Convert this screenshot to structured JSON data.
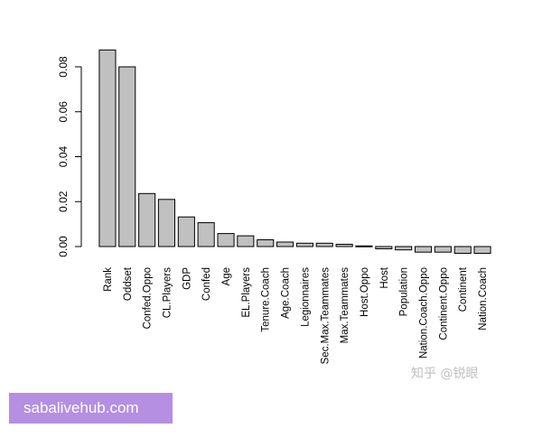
{
  "chart_data": {
    "type": "bar",
    "title": "",
    "xlabel": "",
    "ylabel": "",
    "ylim": [
      -0.004,
      0.088
    ],
    "yticks": [
      "0.00",
      "0.02",
      "0.04",
      "0.06",
      "0.08"
    ],
    "grid": false,
    "bar_fill": "#c0c0c0",
    "bar_stroke": "#000000",
    "categories": [
      "Rank",
      "Oddset",
      "Confed.Oppo",
      "CL.Players",
      "GDP",
      "Confed",
      "Age",
      "EL.Players",
      "Tenure.Coach",
      "Age.Coach",
      "Legionnaires",
      "Sec.Max.Teammates",
      "Max.Teammates",
      "Host.Oppo",
      "Host",
      "Population",
      "Nation.Coach.Oppo",
      "Continent.Oppo",
      "Continent",
      "Nation.Coach"
    ],
    "values": [
      0.0875,
      0.08,
      0.0236,
      0.021,
      0.0132,
      0.0106,
      0.0058,
      0.0048,
      0.003,
      0.002,
      0.0015,
      0.0015,
      0.001,
      0.0003,
      -0.001,
      -0.0015,
      -0.0025,
      -0.0025,
      -0.003,
      -0.003
    ]
  },
  "watermark": "知乎 @锐眼",
  "banner": "sabalivehub.com"
}
